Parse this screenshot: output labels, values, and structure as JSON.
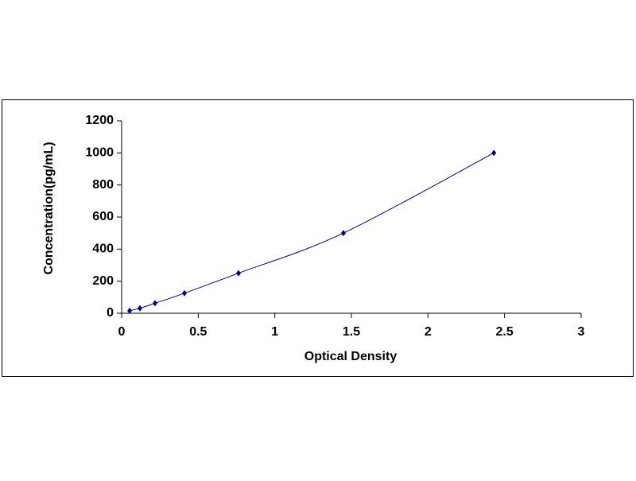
{
  "chart_data": {
    "type": "scatter",
    "x_label": "Optical Density",
    "y_label": "Concentration(pg/mL)",
    "x": [
      0.052,
      0.119,
      0.218,
      0.41,
      0.763,
      1.448,
      2.43
    ],
    "values": [
      15.6,
      31.25,
      62.5,
      125,
      250,
      500,
      1000
    ],
    "color": "#000080",
    "line": true,
    "smooth": true,
    "marker": "diamond",
    "xlim": [
      0,
      3
    ],
    "xticks": [
      0,
      0.5,
      1,
      1.5,
      2,
      2.5,
      3
    ],
    "ylim": [
      0,
      1200
    ],
    "yticks": [
      0,
      200,
      400,
      600,
      800,
      1000,
      1200
    ],
    "grid": false
  }
}
